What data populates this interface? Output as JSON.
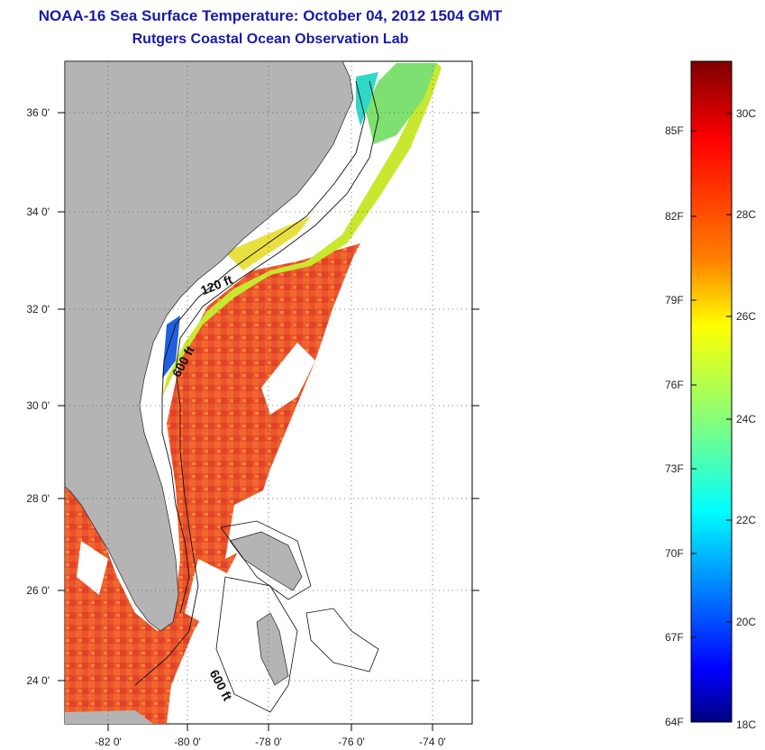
{
  "title": "NOAA-16 Sea Surface Temperature:  October 04, 2012 1504 GMT",
  "subtitle": "Rutgers Coastal Ocean Observation Lab",
  "map": {
    "lat_labels": [
      "36 0'",
      "34 0'",
      "32 0'",
      "30 0'",
      "28 0'",
      "26 0'",
      "24 0'"
    ],
    "lon_labels": [
      "-82 0'",
      "-80 0'",
      "-78 0'",
      "-76 0'",
      "-74 0'"
    ],
    "contour_labels": [
      "120 ft",
      "600 ft",
      "600 ft"
    ],
    "colors": {
      "land": "#b4b4b4",
      "ocean_bg": "#ffffff",
      "warm": "#e8401e",
      "nearshore": "#c8e830"
    }
  },
  "colorbar": {
    "fahrenheit_labels": [
      "85F",
      "82F",
      "79F",
      "76F",
      "73F",
      "70F",
      "67F",
      "64F"
    ],
    "celsius_labels": [
      "30C",
      "28C",
      "26C",
      "24C",
      "22C",
      "20C",
      "18C"
    ],
    "colors": [
      "#7f0000",
      "#ff0000",
      "#ff8000",
      "#ffff00",
      "#80ff80",
      "#00ffff",
      "#0080ff",
      "#0000ff",
      "#00007f"
    ]
  }
}
